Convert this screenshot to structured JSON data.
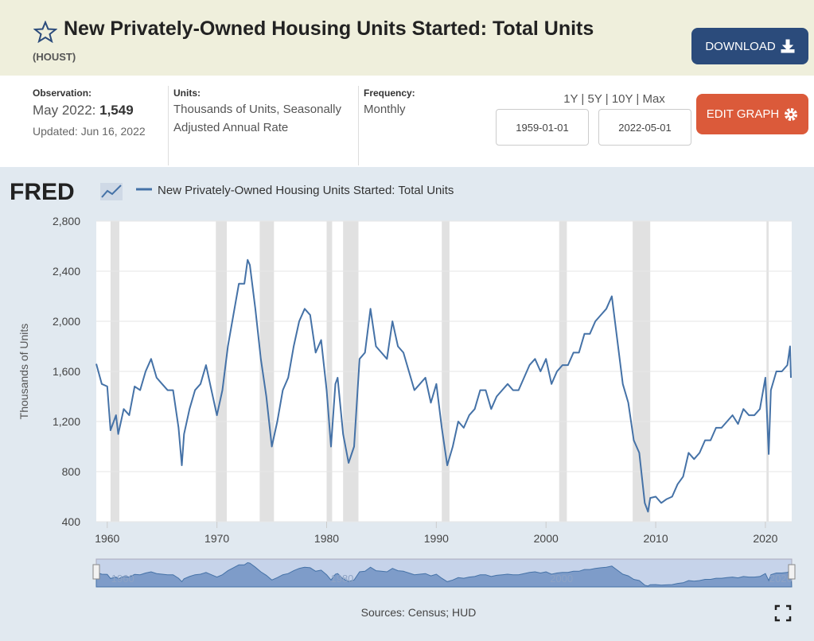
{
  "header": {
    "title": "New Privately-Owned Housing Units Started: Total Units",
    "series_id": "(HOUST)",
    "download": "DOWNLOAD"
  },
  "info": {
    "observation_label": "Observation:",
    "observation_date": "May 2022:",
    "observation_value": "1,549",
    "updated": "Updated: Jun 16, 2022",
    "units_label": "Units:",
    "units": "Thousands of Units, Seasonally Adjusted Annual Rate",
    "frequency_label": "Frequency:",
    "frequency": "Monthly",
    "ranges": [
      "1Y",
      "5Y",
      "10Y",
      "Max"
    ],
    "start_date": "1959-01-01",
    "end_date": "2022-05-01",
    "edit_graph": "EDIT GRAPH"
  },
  "chart_data": {
    "type": "line",
    "logo": "FRED",
    "ylabel": "Thousands of Units",
    "sources": "Sources: Census; HUD",
    "xlim": [
      1959,
      2022.4
    ],
    "xticks": [
      1960,
      1970,
      1980,
      1990,
      2000,
      2010,
      2020
    ],
    "ylim": [
      400,
      2800
    ],
    "yticks": [
      400,
      800,
      {
        "value": 1200,
        "label": "1,200"
      },
      {
        "value": 1600,
        "label": "1,600"
      },
      {
        "value": 2000,
        "label": "2,000"
      },
      {
        "value": 2400,
        "label": "2,400"
      },
      {
        "value": 2800,
        "label": "2,800"
      }
    ],
    "grid": true,
    "recessions": [
      [
        1960.3,
        1961.1
      ],
      [
        1969.9,
        1970.9
      ],
      [
        1973.9,
        1975.2
      ],
      [
        1980.0,
        1980.5
      ],
      [
        1981.5,
        1982.9
      ],
      [
        1990.5,
        1991.2
      ],
      [
        2001.2,
        2001.9
      ],
      [
        2007.9,
        2009.5
      ],
      [
        2020.1,
        2020.3
      ]
    ],
    "navigator_labels": [
      1960,
      1980,
      2000,
      2020
    ],
    "x": [
      1959.0,
      1959.5,
      1960.0,
      1960.3,
      1960.8,
      1961.0,
      1961.5,
      1962.0,
      1962.5,
      1963.0,
      1963.5,
      1964.0,
      1964.5,
      1965.0,
      1965.5,
      1966.0,
      1966.5,
      1966.8,
      1967.0,
      1967.5,
      1968.0,
      1968.5,
      1969.0,
      1969.5,
      1970.0,
      1970.5,
      1971.0,
      1971.5,
      1972.0,
      1972.5,
      1972.8,
      1973.0,
      1973.5,
      1974.0,
      1974.5,
      1975.0,
      1975.5,
      1976.0,
      1976.5,
      1977.0,
      1977.5,
      1978.0,
      1978.5,
      1979.0,
      1979.5,
      1980.0,
      1980.4,
      1980.8,
      1981.0,
      1981.5,
      1982.0,
      1982.5,
      1983.0,
      1983.5,
      1984.0,
      1984.5,
      1985.0,
      1985.5,
      1986.0,
      1986.5,
      1987.0,
      1987.5,
      1988.0,
      1988.5,
      1989.0,
      1989.5,
      1990.0,
      1990.5,
      1991.0,
      1991.5,
      1992.0,
      1992.5,
      1993.0,
      1993.5,
      1994.0,
      1994.5,
      1995.0,
      1995.5,
      1996.0,
      1996.5,
      1997.0,
      1997.5,
      1998.0,
      1998.5,
      1999.0,
      1999.5,
      2000.0,
      2000.5,
      2001.0,
      2001.5,
      2002.0,
      2002.5,
      2003.0,
      2003.5,
      2004.0,
      2004.5,
      2005.0,
      2005.5,
      2006.0,
      2006.5,
      2007.0,
      2007.5,
      2008.0,
      2008.5,
      2009.0,
      2009.3,
      2009.5,
      2010.0,
      2010.5,
      2011.0,
      2011.5,
      2012.0,
      2012.5,
      2013.0,
      2013.5,
      2014.0,
      2014.5,
      2015.0,
      2015.5,
      2016.0,
      2016.5,
      2017.0,
      2017.5,
      2018.0,
      2018.5,
      2019.0,
      2019.5,
      2020.0,
      2020.3,
      2020.5,
      2021.0,
      2021.5,
      2022.0,
      2022.25,
      2022.33
    ],
    "series": [
      {
        "name": "New Privately-Owned Housing Units Started: Total Units",
        "color": "#4572a7",
        "values": [
          1660,
          1500,
          1480,
          1130,
          1250,
          1100,
          1300,
          1250,
          1480,
          1450,
          1600,
          1700,
          1550,
          1500,
          1450,
          1450,
          1150,
          850,
          1100,
          1300,
          1450,
          1500,
          1650,
          1450,
          1250,
          1450,
          1800,
          2050,
          2300,
          2300,
          2490,
          2450,
          2100,
          1700,
          1400,
          1000,
          1200,
          1450,
          1550,
          1800,
          2000,
          2100,
          2050,
          1750,
          1850,
          1450,
          1000,
          1500,
          1550,
          1100,
          870,
          1000,
          1700,
          1750,
          2100,
          1800,
          1750,
          1700,
          2000,
          1800,
          1750,
          1600,
          1450,
          1500,
          1550,
          1350,
          1500,
          1150,
          850,
          1000,
          1200,
          1150,
          1250,
          1300,
          1450,
          1450,
          1300,
          1400,
          1450,
          1500,
          1450,
          1450,
          1550,
          1650,
          1700,
          1600,
          1700,
          1500,
          1600,
          1650,
          1650,
          1750,
          1750,
          1900,
          1900,
          2000,
          2050,
          2100,
          2200,
          1850,
          1500,
          1350,
          1050,
          950,
          550,
          480,
          590,
          600,
          550,
          580,
          600,
          700,
          760,
          950,
          900,
          950,
          1050,
          1050,
          1150,
          1150,
          1200,
          1250,
          1180,
          1300,
          1250,
          1250,
          1300,
          1550,
          940,
          1450,
          1600,
          1600,
          1650,
          1800,
          1549
        ]
      }
    ]
  }
}
